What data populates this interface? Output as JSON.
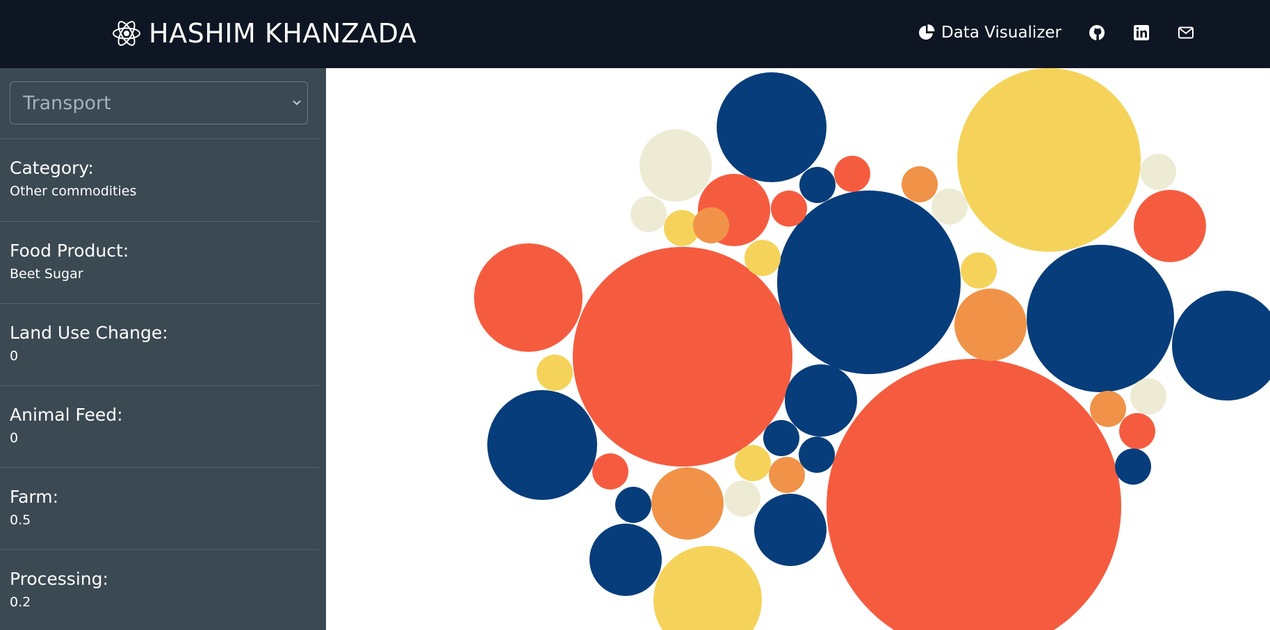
{
  "navbar": {
    "brand": "HASHIM KHANZADA",
    "brand_icon": "atom-icon",
    "links": [
      {
        "label": "Data Visualizer",
        "icon": "pie-chart-icon"
      },
      {
        "label": "",
        "icon": "github-icon"
      },
      {
        "label": "",
        "icon": "linkedin-icon"
      },
      {
        "label": "",
        "icon": "mail-icon"
      }
    ]
  },
  "sidebar": {
    "select_value": "Transport",
    "fields": [
      {
        "label": "Category:",
        "value": "Other commodities"
      },
      {
        "label": "Food Product:",
        "value": "Beet Sugar"
      },
      {
        "label": "Land Use Change:",
        "value": "0"
      },
      {
        "label": "Animal Feed:",
        "value": "0"
      },
      {
        "label": "Farm:",
        "value": "0.5"
      },
      {
        "label": "Processing:",
        "value": "0.2"
      }
    ]
  },
  "colors": {
    "navy": "#073d7a",
    "red": "#f55c3f",
    "orange": "#f09348",
    "yellow": "#f5d35a",
    "cream": "#edebd3"
  },
  "chart_data": {
    "type": "bubble",
    "title": "",
    "legend": "none",
    "note": "packed bubble chart with unlabeled circles"
  }
}
